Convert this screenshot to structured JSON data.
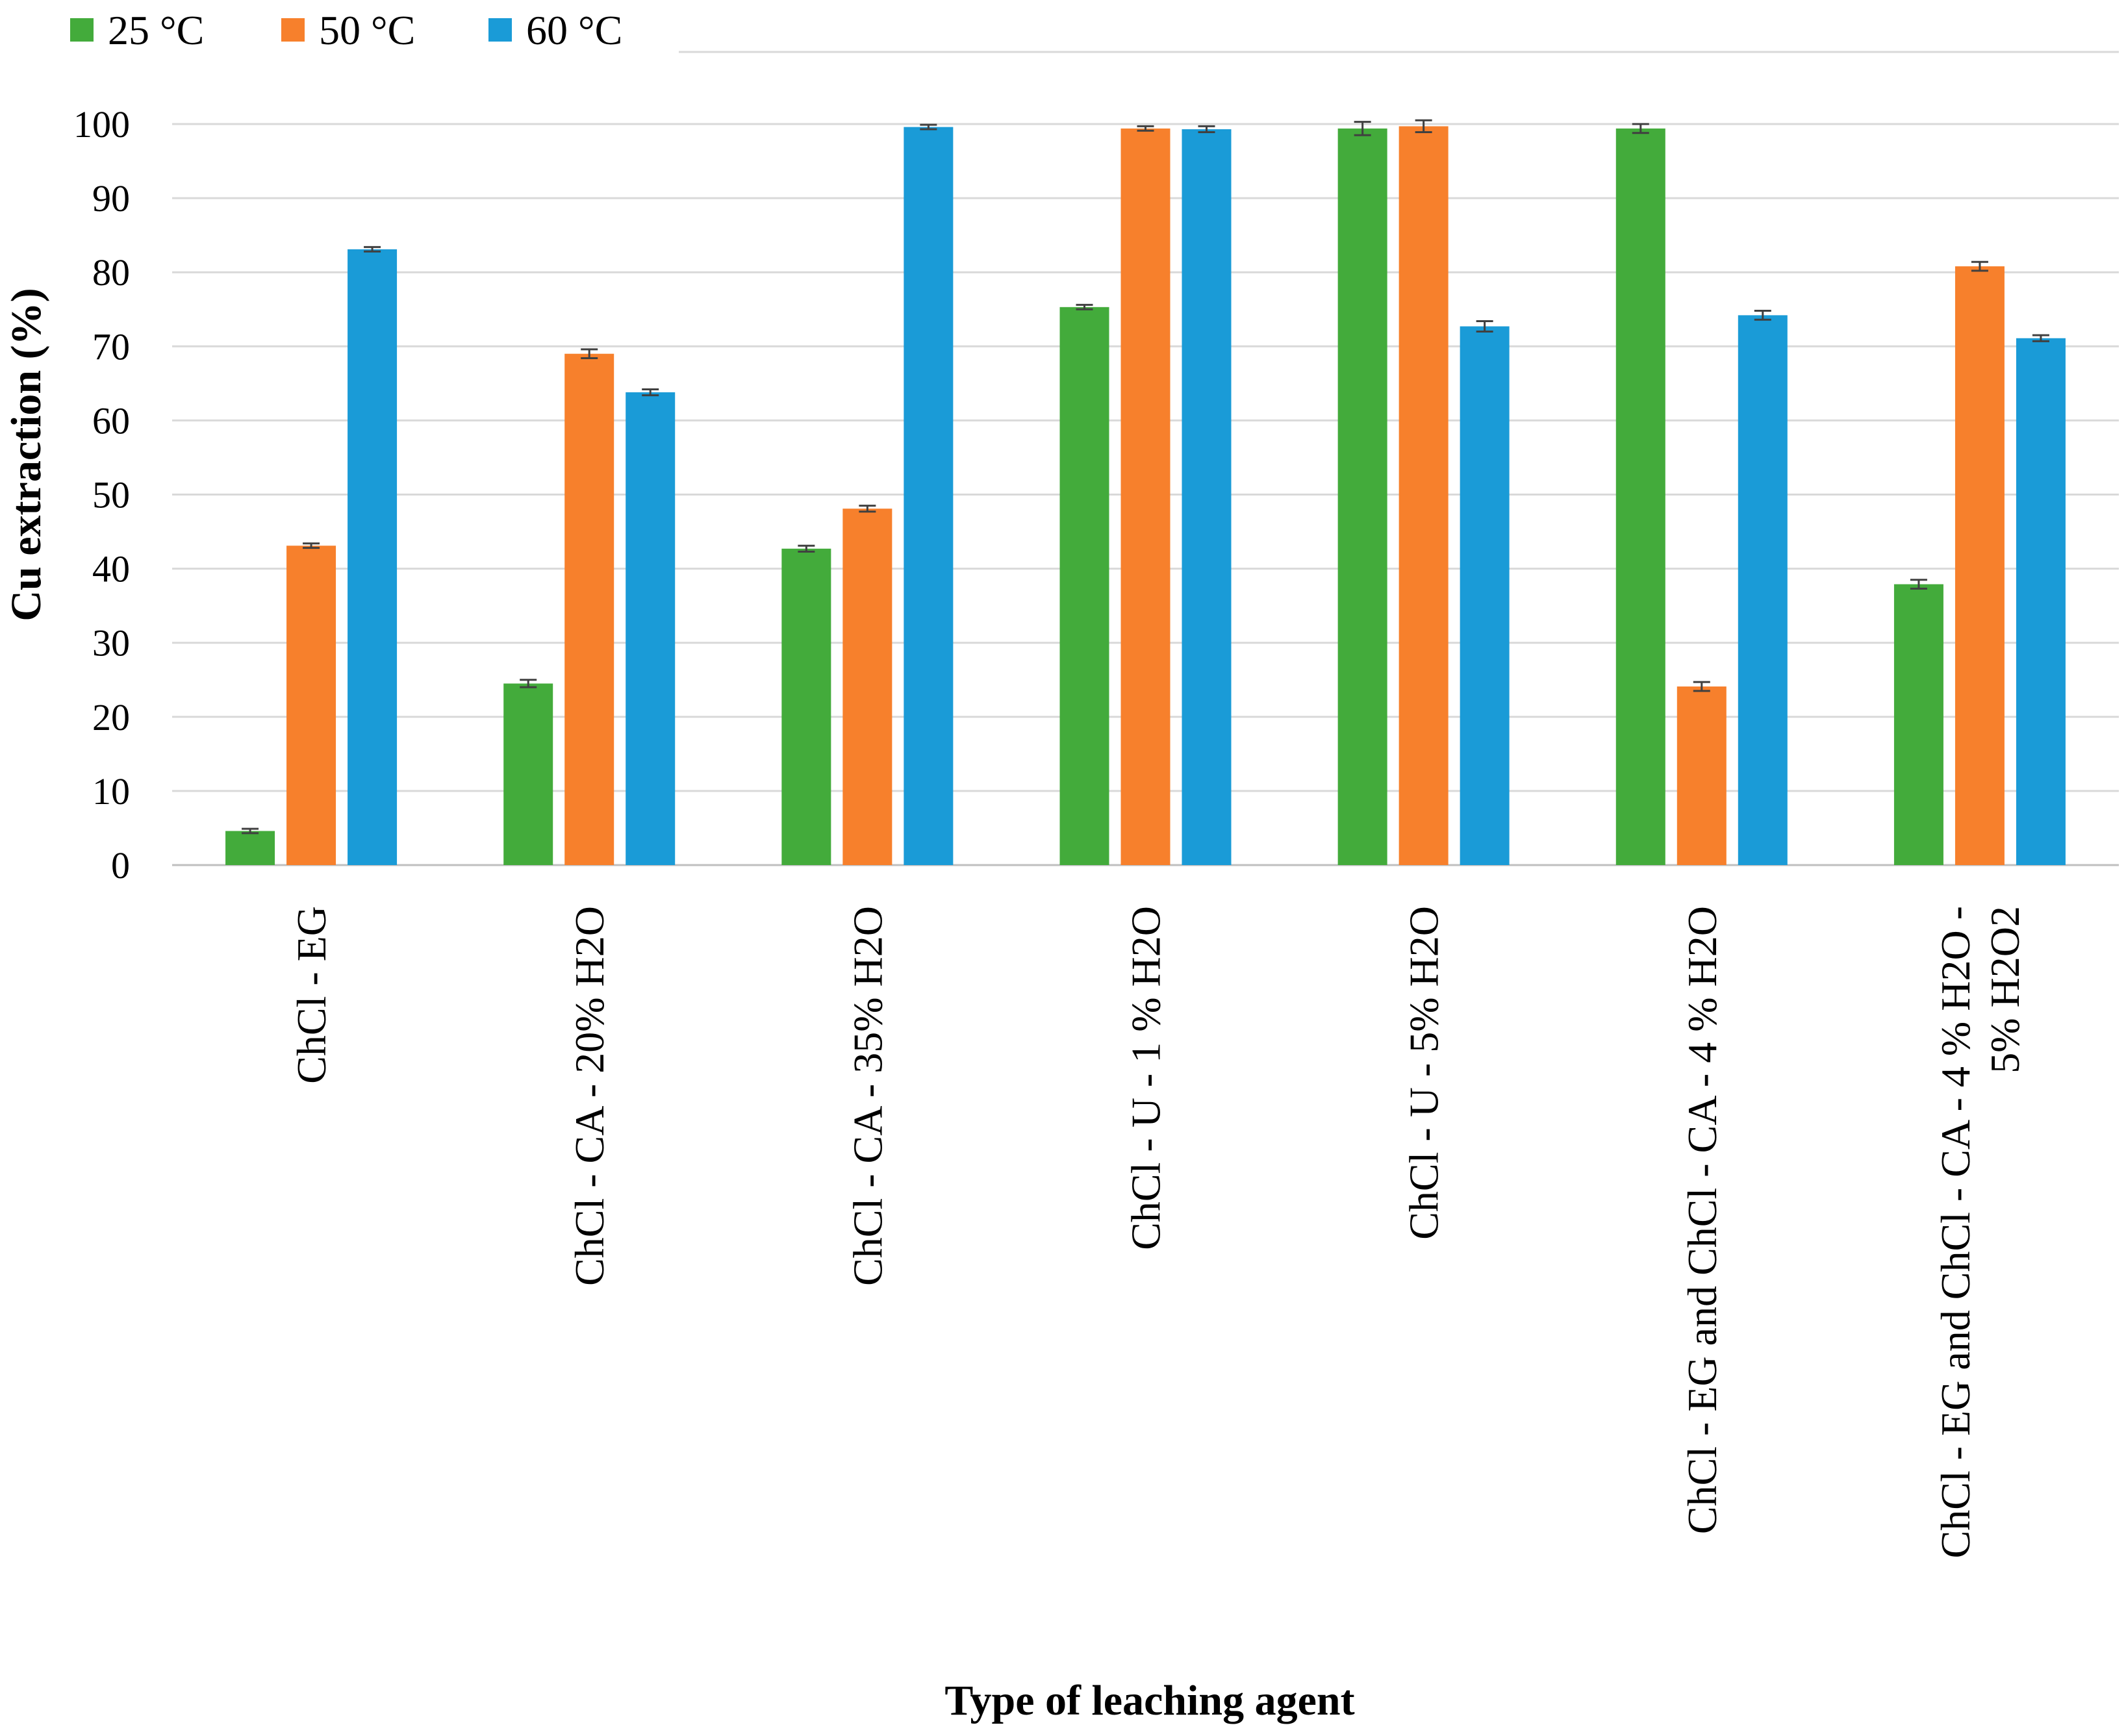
{
  "chart_data": {
    "type": "bar",
    "title": "",
    "xlabel": "Type of leaching agent",
    "ylabel": "Cu extraction (%)",
    "ylim": [
      0,
      100
    ],
    "yticks": [
      "0",
      "10",
      "20",
      "30",
      "40",
      "50",
      "60",
      "70",
      "80",
      "90",
      "100"
    ],
    "grid": true,
    "legend_position": "top-left",
    "categories": [
      [
        "ChCl - EG"
      ],
      [
        "ChCl - CA - 20% H2O"
      ],
      [
        "ChCl - CA - 35% H2O"
      ],
      [
        "ChCl - U - 1 % H2O"
      ],
      [
        "ChCl - U -  5% H2O"
      ],
      [
        "ChCl - EG and ChCl - CA - 4 % H2O"
      ],
      [
        "ChCl - EG and ChCl - CA - 4 % H2O -",
        "5% H2O2"
      ]
    ],
    "series": [
      {
        "name": "25 °C",
        "color": "#43ab3b",
        "values": [
          4.6,
          24.5,
          42.7,
          75.3,
          99.4,
          99.4,
          37.9
        ],
        "errors": [
          0.3,
          0.5,
          0.4,
          0.3,
          0.9,
          0.6,
          0.6
        ]
      },
      {
        "name": "50 °C",
        "color": "#f7802c",
        "values": [
          43.1,
          69.0,
          48.1,
          99.4,
          99.7,
          24.1,
          80.8
        ],
        "errors": [
          0.3,
          0.6,
          0.4,
          0.3,
          0.8,
          0.6,
          0.6
        ]
      },
      {
        "name": "60 °C",
        "color": "#1a9bd7",
        "values": [
          83.1,
          63.8,
          99.6,
          99.3,
          72.7,
          74.2,
          71.1
        ],
        "errors": [
          0.3,
          0.4,
          0.3,
          0.4,
          0.7,
          0.6,
          0.4
        ]
      }
    ]
  }
}
